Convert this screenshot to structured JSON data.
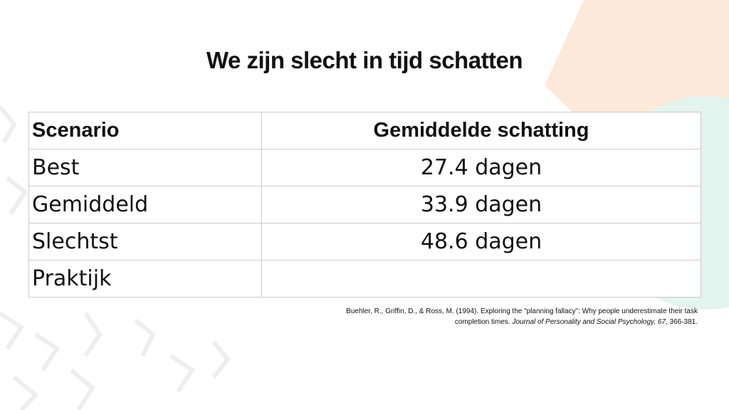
{
  "title": "We zijn slecht in tijd schatten",
  "table": {
    "header": [
      "Scenario",
      "Gemiddelde schatting"
    ],
    "rows": [
      [
        "Best",
        "27.4 dagen"
      ],
      [
        "Gemiddeld",
        "33.9 dagen"
      ],
      [
        "Slechtst",
        "48.6 dagen"
      ],
      [
        "Praktijk"
      ]
    ]
  },
  "citation": {
    "text": "Buehler, R., Griffin, D., & Ross, M. (1994). Exploring the \"planning fallacy\": Why people underestimate their task completion times. ",
    "journal": "Journal of Personality and Social Psychology, 67",
    "pages": ", 366-381."
  }
}
